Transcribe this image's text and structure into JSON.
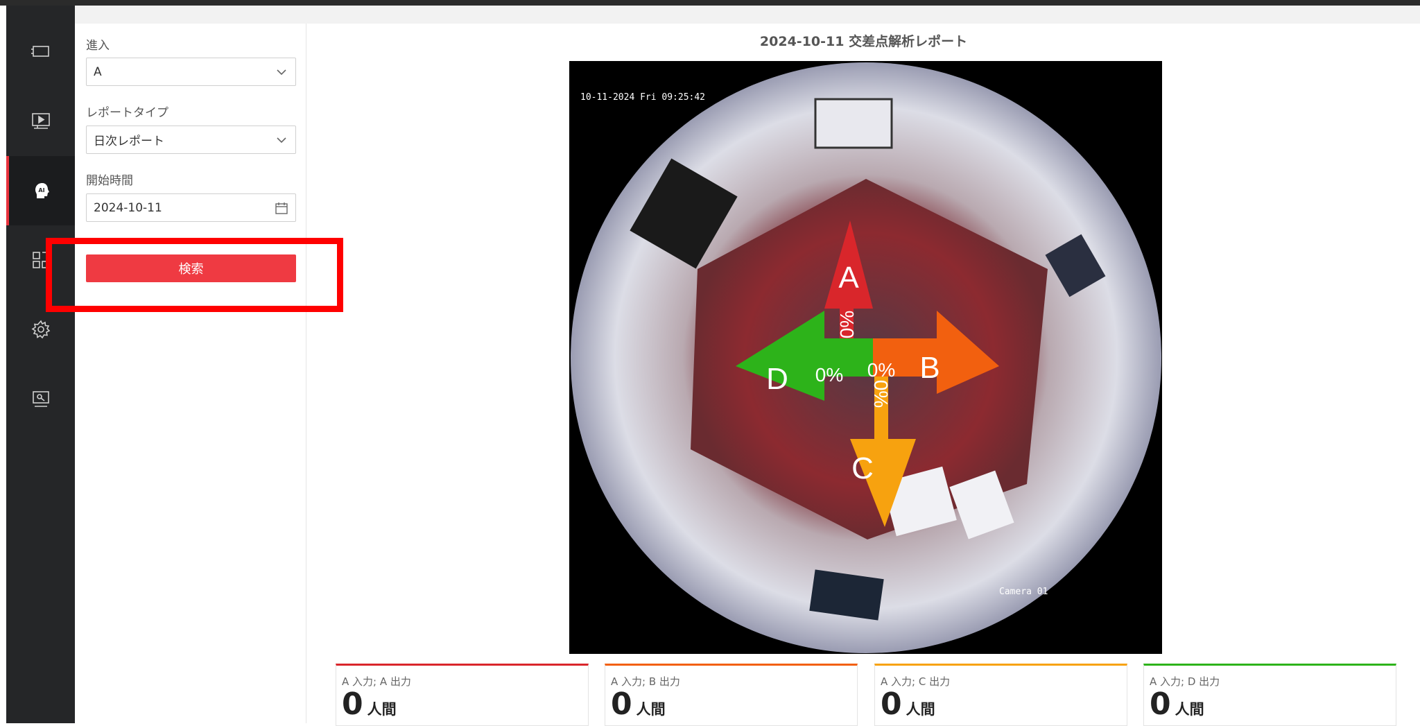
{
  "sidebar": {
    "items": [
      {
        "icon": "device-icon",
        "active": false
      },
      {
        "icon": "playback-icon",
        "active": false
      },
      {
        "icon": "ai-head-icon",
        "active": true
      },
      {
        "icon": "apps-grid-icon",
        "active": false
      },
      {
        "icon": "gear-icon",
        "active": false
      },
      {
        "icon": "maintenance-icon",
        "active": false
      }
    ]
  },
  "filters": {
    "entry_label": "進入",
    "entry_value": "A",
    "report_type_label": "レポートタイプ",
    "report_type_value": "日次レポート",
    "start_time_label": "開始時間",
    "start_time_value": "2024-10-11",
    "search_label": "検索"
  },
  "report": {
    "title": "2024-10-11 交差点解析レポート",
    "camera_timestamp": "10-11-2024 Fri 09:25:42",
    "camera_name": "Camera 01",
    "arrows": [
      {
        "letter": "A",
        "percent": "0%",
        "color": "#d9262b"
      },
      {
        "letter": "B",
        "percent": "0%",
        "color": "#f2600f"
      },
      {
        "letter": "C",
        "percent": "0%",
        "color": "#f7a20f"
      },
      {
        "letter": "D",
        "percent": "0%",
        "color": "#2db31a"
      }
    ]
  },
  "cards": [
    {
      "label": "A 入力; A 出力",
      "value": "0",
      "unit": "人間",
      "color": "#d9262b"
    },
    {
      "label": "A 入力; B 出力",
      "value": "0",
      "unit": "人間",
      "color": "#f2600f"
    },
    {
      "label": "A 入力; C 出力",
      "value": "0",
      "unit": "人間",
      "color": "#f7a20f"
    },
    {
      "label": "A 入力; D 出力",
      "value": "0",
      "unit": "人間",
      "color": "#2db31a"
    }
  ]
}
